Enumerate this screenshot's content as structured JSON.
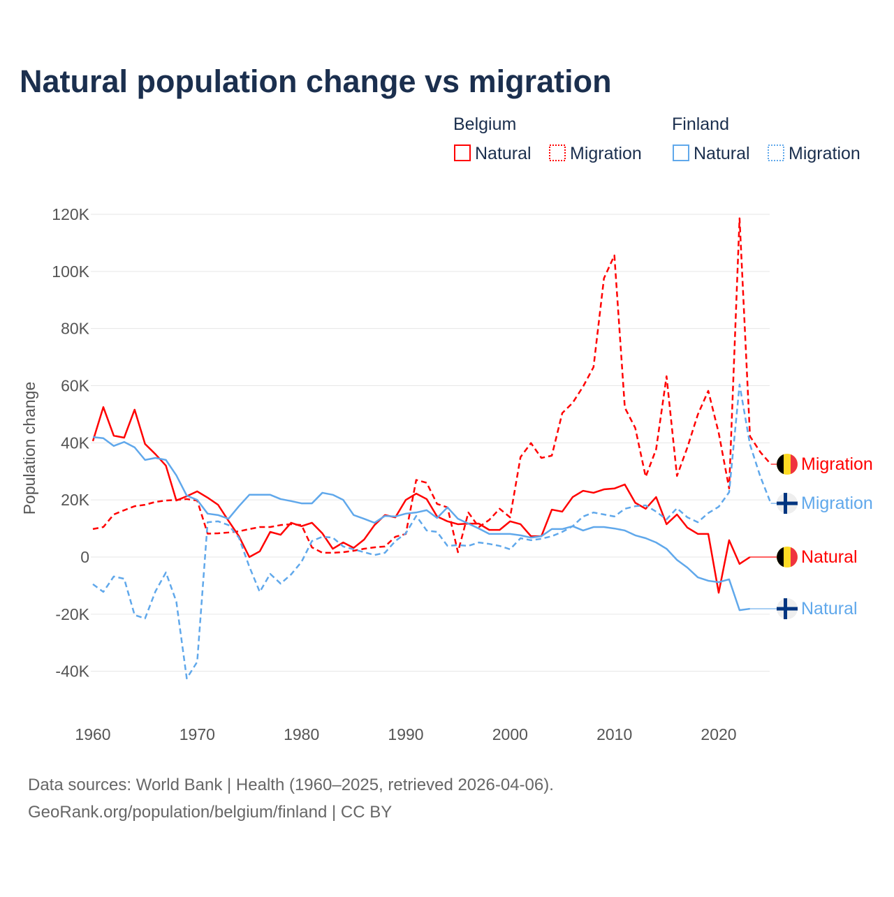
{
  "colors": {
    "belgium": "#ff0000",
    "finland": "#60a8eb",
    "title": "#1b2f4e",
    "text": "#555555",
    "grid": "#e6e6e6"
  },
  "chart_data": {
    "type": "line",
    "title": "Natural population change vs migration",
    "xlabel": "",
    "ylabel": "Population change",
    "xlim": [
      1960,
      2025
    ],
    "ylim": [
      -40000,
      120000
    ],
    "x_ticks": [
      1960,
      1970,
      1980,
      1990,
      2000,
      2010,
      2020
    ],
    "x_tick_labels": [
      "1960",
      "1970",
      "1980",
      "1990",
      "2000",
      "2010",
      "2020"
    ],
    "y_ticks": [
      -40000,
      -20000,
      0,
      20000,
      40000,
      60000,
      80000,
      100000,
      120000
    ],
    "y_tick_labels": [
      "-40K",
      "-20K",
      "0",
      "20K",
      "40K",
      "60K",
      "80K",
      "100K",
      "120K"
    ],
    "grid": true,
    "legend": {
      "placement": "top-right",
      "groups": [
        {
          "title": "Belgium",
          "entries": [
            "Natural",
            "Migration"
          ]
        },
        {
          "title": "Finland",
          "entries": [
            "Natural",
            "Migration"
          ]
        }
      ]
    },
    "start_year": 1960,
    "series": [
      {
        "name": "Belgium Natural",
        "country": "Belgium",
        "kind": "Natural",
        "label": "Natural",
        "color": "#ff0000",
        "dash": false,
        "values": [
          40600,
          52500,
          42500,
          41800,
          51600,
          39600,
          36000,
          32000,
          19800,
          21300,
          23000,
          20800,
          18300,
          12700,
          7300,
          0,
          2000,
          8800,
          7800,
          12000,
          10800,
          12000,
          8300,
          2900,
          5100,
          3200,
          6100,
          11200,
          14700,
          13900,
          20000,
          22200,
          20300,
          14200,
          12500,
          11500,
          11700,
          11700,
          9500,
          9500,
          12500,
          11500,
          7300,
          7300,
          16600,
          15900,
          21000,
          23200,
          22500,
          23700,
          24000,
          25400,
          19000,
          16900,
          21000,
          11500,
          14900,
          10300,
          8100,
          8100,
          -12500,
          5900,
          -2400,
          0
        ]
      },
      {
        "name": "Belgium Migration",
        "country": "Belgium",
        "kind": "Migration",
        "label": "Migration",
        "color": "#ff0000",
        "dash": true,
        "values": [
          9800,
          10500,
          14900,
          16400,
          17800,
          18300,
          19300,
          19800,
          20000,
          20300,
          19800,
          8200,
          8300,
          8600,
          9000,
          9800,
          10500,
          10500,
          11200,
          11500,
          11200,
          3400,
          1500,
          1500,
          1700,
          2200,
          2900,
          3400,
          3700,
          7100,
          8100,
          27000,
          26000,
          18600,
          17400,
          1700,
          15600,
          10500,
          13000,
          16900,
          13900,
          35000,
          39900,
          34700,
          35500,
          50400,
          54000,
          59700,
          66500,
          97600,
          105600,
          52300,
          45200,
          28100,
          37700,
          63300,
          28400,
          38400,
          49900,
          58200,
          43500,
          24000,
          118600,
          42300,
          36700,
          32500
        ]
      },
      {
        "name": "Finland Natural",
        "country": "Finland",
        "kind": "Natural",
        "label": "Natural",
        "color": "#60a8eb",
        "dash": false,
        "values": [
          42000,
          41600,
          38900,
          40300,
          38400,
          34000,
          34700,
          34000,
          28600,
          21500,
          20000,
          15200,
          14700,
          13400,
          17800,
          21800,
          21800,
          21800,
          20300,
          19600,
          18800,
          18800,
          22500,
          21800,
          20000,
          14700,
          13400,
          12000,
          14400,
          14200,
          15200,
          15600,
          16400,
          13700,
          17400,
          13400,
          11700,
          10000,
          8100,
          8100,
          8100,
          7600,
          6800,
          7300,
          9800,
          9800,
          10800,
          9300,
          10500,
          10500,
          10000,
          9300,
          7600,
          6600,
          5100,
          2900,
          -1000,
          -3700,
          -7100,
          -8300,
          -8800,
          -7800,
          -18600,
          -18100
        ]
      },
      {
        "name": "Finland Migration",
        "country": "Finland",
        "kind": "Migration",
        "label": "Migration",
        "color": "#60a8eb",
        "dash": true,
        "values": [
          -9500,
          -12200,
          -6800,
          -7600,
          -20300,
          -21500,
          -12000,
          -5400,
          -15600,
          -42500,
          -36700,
          12200,
          12500,
          11200,
          6800,
          -3400,
          -12200,
          -5900,
          -9300,
          -6100,
          -1700,
          5600,
          7100,
          6800,
          3700,
          2700,
          1700,
          700,
          1500,
          5600,
          8300,
          14400,
          9300,
          8800,
          3900,
          4200,
          3900,
          5100,
          4600,
          3900,
          2700,
          6600,
          5900,
          6400,
          7300,
          8800,
          10800,
          14200,
          15600,
          14900,
          14200,
          16900,
          17800,
          18100,
          15900,
          13200,
          17100,
          13900,
          12200,
          15400,
          17600,
          22700,
          60400,
          39400,
          28100,
          18800
        ]
      }
    ]
  },
  "footer": {
    "line1": "Data sources: World Bank | Health (1960–2025, retrieved 2026-04-06).",
    "line2": "GeoRank.org/population/belgium/finland | CC BY"
  }
}
